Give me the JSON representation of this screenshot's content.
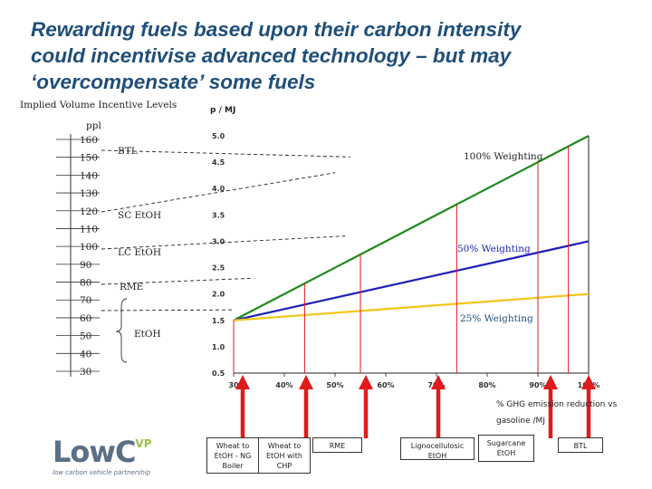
{
  "title": {
    "line1": "Rewarding fuels based upon their carbon intensity",
    "line2": "could incentivise advanced technology – but may",
    "line3": "‘overcompensate’ some fuels"
  },
  "left_panel": {
    "heading": "Implied Volume Incentive Levels",
    "unit": "ppl",
    "ppl_ticks": [
      "160",
      "150",
      "140",
      "130",
      "120",
      "110",
      "100",
      "90",
      "80",
      "70",
      "60",
      "50",
      "40",
      "30"
    ],
    "fuel_labels": [
      "BTL",
      "SC EtOH",
      "LC EtOH",
      "RME",
      "EtOH"
    ]
  },
  "chart_data": {
    "type": "line",
    "title": "",
    "ylabel": "p / MJ",
    "xlabel": "% GHG emission reduction vs gasoline /MJ",
    "xlim": [
      30,
      100
    ],
    "ylim": [
      0.5,
      5.0
    ],
    "x_ticks": [
      "30",
      "40%",
      "50%",
      "60%",
      "70%",
      "80%",
      "90%",
      "100%"
    ],
    "y_ticks": [
      "5.0",
      "4.5",
      "4.0",
      "3.5",
      "3.0",
      "2.5",
      "2.0",
      "1.5",
      "1.0",
      "0.5"
    ],
    "series": [
      {
        "name": "100% Weighting",
        "color": "#1a8a1a",
        "x": [
          30,
          100
        ],
        "y": [
          1.5,
          5.0
        ]
      },
      {
        "name": "50% Weighting",
        "color": "#1f1fb8",
        "x": [
          30,
          100
        ],
        "y": [
          1.5,
          3.0
        ]
      },
      {
        "name": "25% Weighting",
        "color": "#f5c518",
        "x": [
          30,
          100
        ],
        "y": [
          1.5,
          2.0
        ]
      }
    ],
    "markers": [
      {
        "x": 30
      },
      {
        "x": 44
      },
      {
        "x": 55
      },
      {
        "x": 74
      },
      {
        "x": 90
      },
      {
        "x": 96
      }
    ],
    "dashed_refs": [
      {
        "x": 53,
        "y": 4.6
      },
      {
        "x": 50,
        "y": 4.3
      },
      {
        "x": 52,
        "y": 3.1
      },
      {
        "x": 34,
        "y": 2.3
      },
      {
        "x": 30,
        "y": 1.7
      }
    ]
  },
  "fuel_boxes": [
    {
      "label": "Wheat to EtOH - NG Boiler"
    },
    {
      "label": "Wheat to EtOH with CHP"
    },
    {
      "label": "RME"
    },
    {
      "label": "Lignocellulosic EtOH"
    },
    {
      "label": "Sugarcane EtOH"
    },
    {
      "label": "BTL"
    }
  ],
  "logo": {
    "main": "LowC",
    "superscript": "VP",
    "tagline": "low carbon vehicle partnership"
  },
  "colors": {
    "title": "#1f4e79",
    "arrow": "#e01b1b",
    "marker": "#e01b1b",
    "logo_green": "#9bc24a",
    "logo_grey": "#5a6f86"
  }
}
